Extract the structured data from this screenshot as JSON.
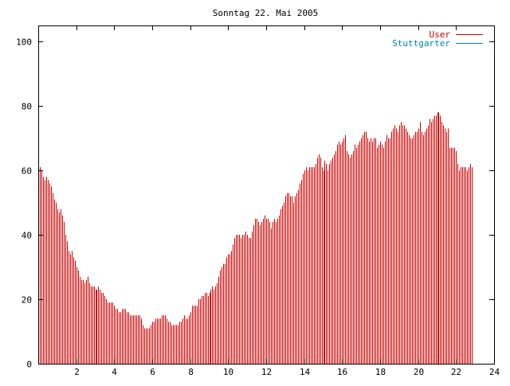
{
  "chart_data": {
    "type": "bar",
    "title": "Sonntag 22. Mai 2005",
    "xlabel": "",
    "ylabel": "",
    "xlim": [
      0,
      24
    ],
    "ylim": [
      0,
      105
    ],
    "x_ticks": [
      2,
      4,
      6,
      8,
      10,
      12,
      14,
      16,
      18,
      20,
      22,
      24
    ],
    "x_tick_labels": [
      "2",
      "4",
      "6",
      "8",
      "10",
      "12",
      "14",
      "16",
      "18",
      "20",
      "22",
      "24"
    ],
    "y_ticks": [
      0,
      20,
      40,
      60,
      80,
      100
    ],
    "y_tick_labels": [
      "0",
      "20",
      "40",
      "60",
      "80",
      "100"
    ],
    "grid": false,
    "legend_position": "top-right",
    "interval_minutes": 5,
    "series": [
      {
        "name": "User",
        "color": "#cc0000",
        "values": [
          62,
          61,
          60,
          58,
          57,
          58,
          57,
          56,
          55,
          53,
          51,
          50,
          48,
          47,
          48,
          46,
          44,
          40,
          38,
          35,
          34,
          35,
          33,
          32,
          30,
          29,
          27,
          26,
          26,
          25,
          26,
          27,
          25,
          24,
          24,
          24,
          23,
          23,
          24,
          23,
          22,
          22,
          21,
          20,
          19,
          19,
          19,
          19,
          18,
          17,
          17,
          16,
          16,
          17,
          17,
          17,
          16,
          16,
          15,
          15,
          15,
          15,
          15,
          15,
          15,
          14,
          12,
          11,
          11,
          11,
          11,
          12,
          13,
          13,
          14,
          14,
          14,
          14,
          15,
          15,
          15,
          14,
          13,
          13,
          12,
          12,
          12,
          12,
          12,
          13,
          13,
          14,
          15,
          14,
          14,
          15,
          16,
          18,
          18,
          18,
          18,
          20,
          20,
          21,
          21,
          22,
          22,
          21,
          22,
          23,
          24,
          23,
          24,
          25,
          27,
          29,
          30,
          31,
          31,
          33,
          34,
          34,
          35,
          37,
          39,
          40,
          40,
          40,
          39,
          40,
          40,
          41,
          40,
          39,
          39,
          41,
          43,
          45,
          45,
          44,
          43,
          44,
          45,
          46,
          45,
          45,
          44,
          42,
          44,
          45,
          44,
          45,
          46,
          48,
          49,
          50,
          52,
          53,
          53,
          52,
          52,
          50,
          52,
          53,
          54,
          56,
          57,
          59,
          60,
          61,
          60,
          61,
          61,
          61,
          61,
          62,
          64,
          65,
          64,
          61,
          60,
          63,
          62,
          60,
          62,
          63,
          64,
          65,
          66,
          68,
          69,
          68,
          69,
          70,
          71,
          66,
          65,
          64,
          65,
          66,
          68,
          67,
          68,
          69,
          70,
          71,
          72,
          72,
          70,
          69,
          70,
          69,
          70,
          70,
          67,
          68,
          69,
          68,
          67,
          69,
          71,
          70,
          70,
          72,
          73,
          74,
          73,
          72,
          74,
          75,
          74,
          74,
          73,
          72,
          71,
          70,
          70,
          71,
          72,
          72,
          73,
          75,
          72,
          71,
          72,
          73,
          74,
          76,
          75,
          76,
          77,
          77,
          78,
          78,
          77,
          75,
          74,
          73,
          72,
          73,
          67,
          67,
          67,
          67,
          66,
          62,
          60,
          61,
          61,
          61,
          61,
          60,
          61,
          62,
          61
        ]
      },
      {
        "name": "Stuttgarter",
        "color": "#0080c0",
        "values": []
      }
    ]
  }
}
